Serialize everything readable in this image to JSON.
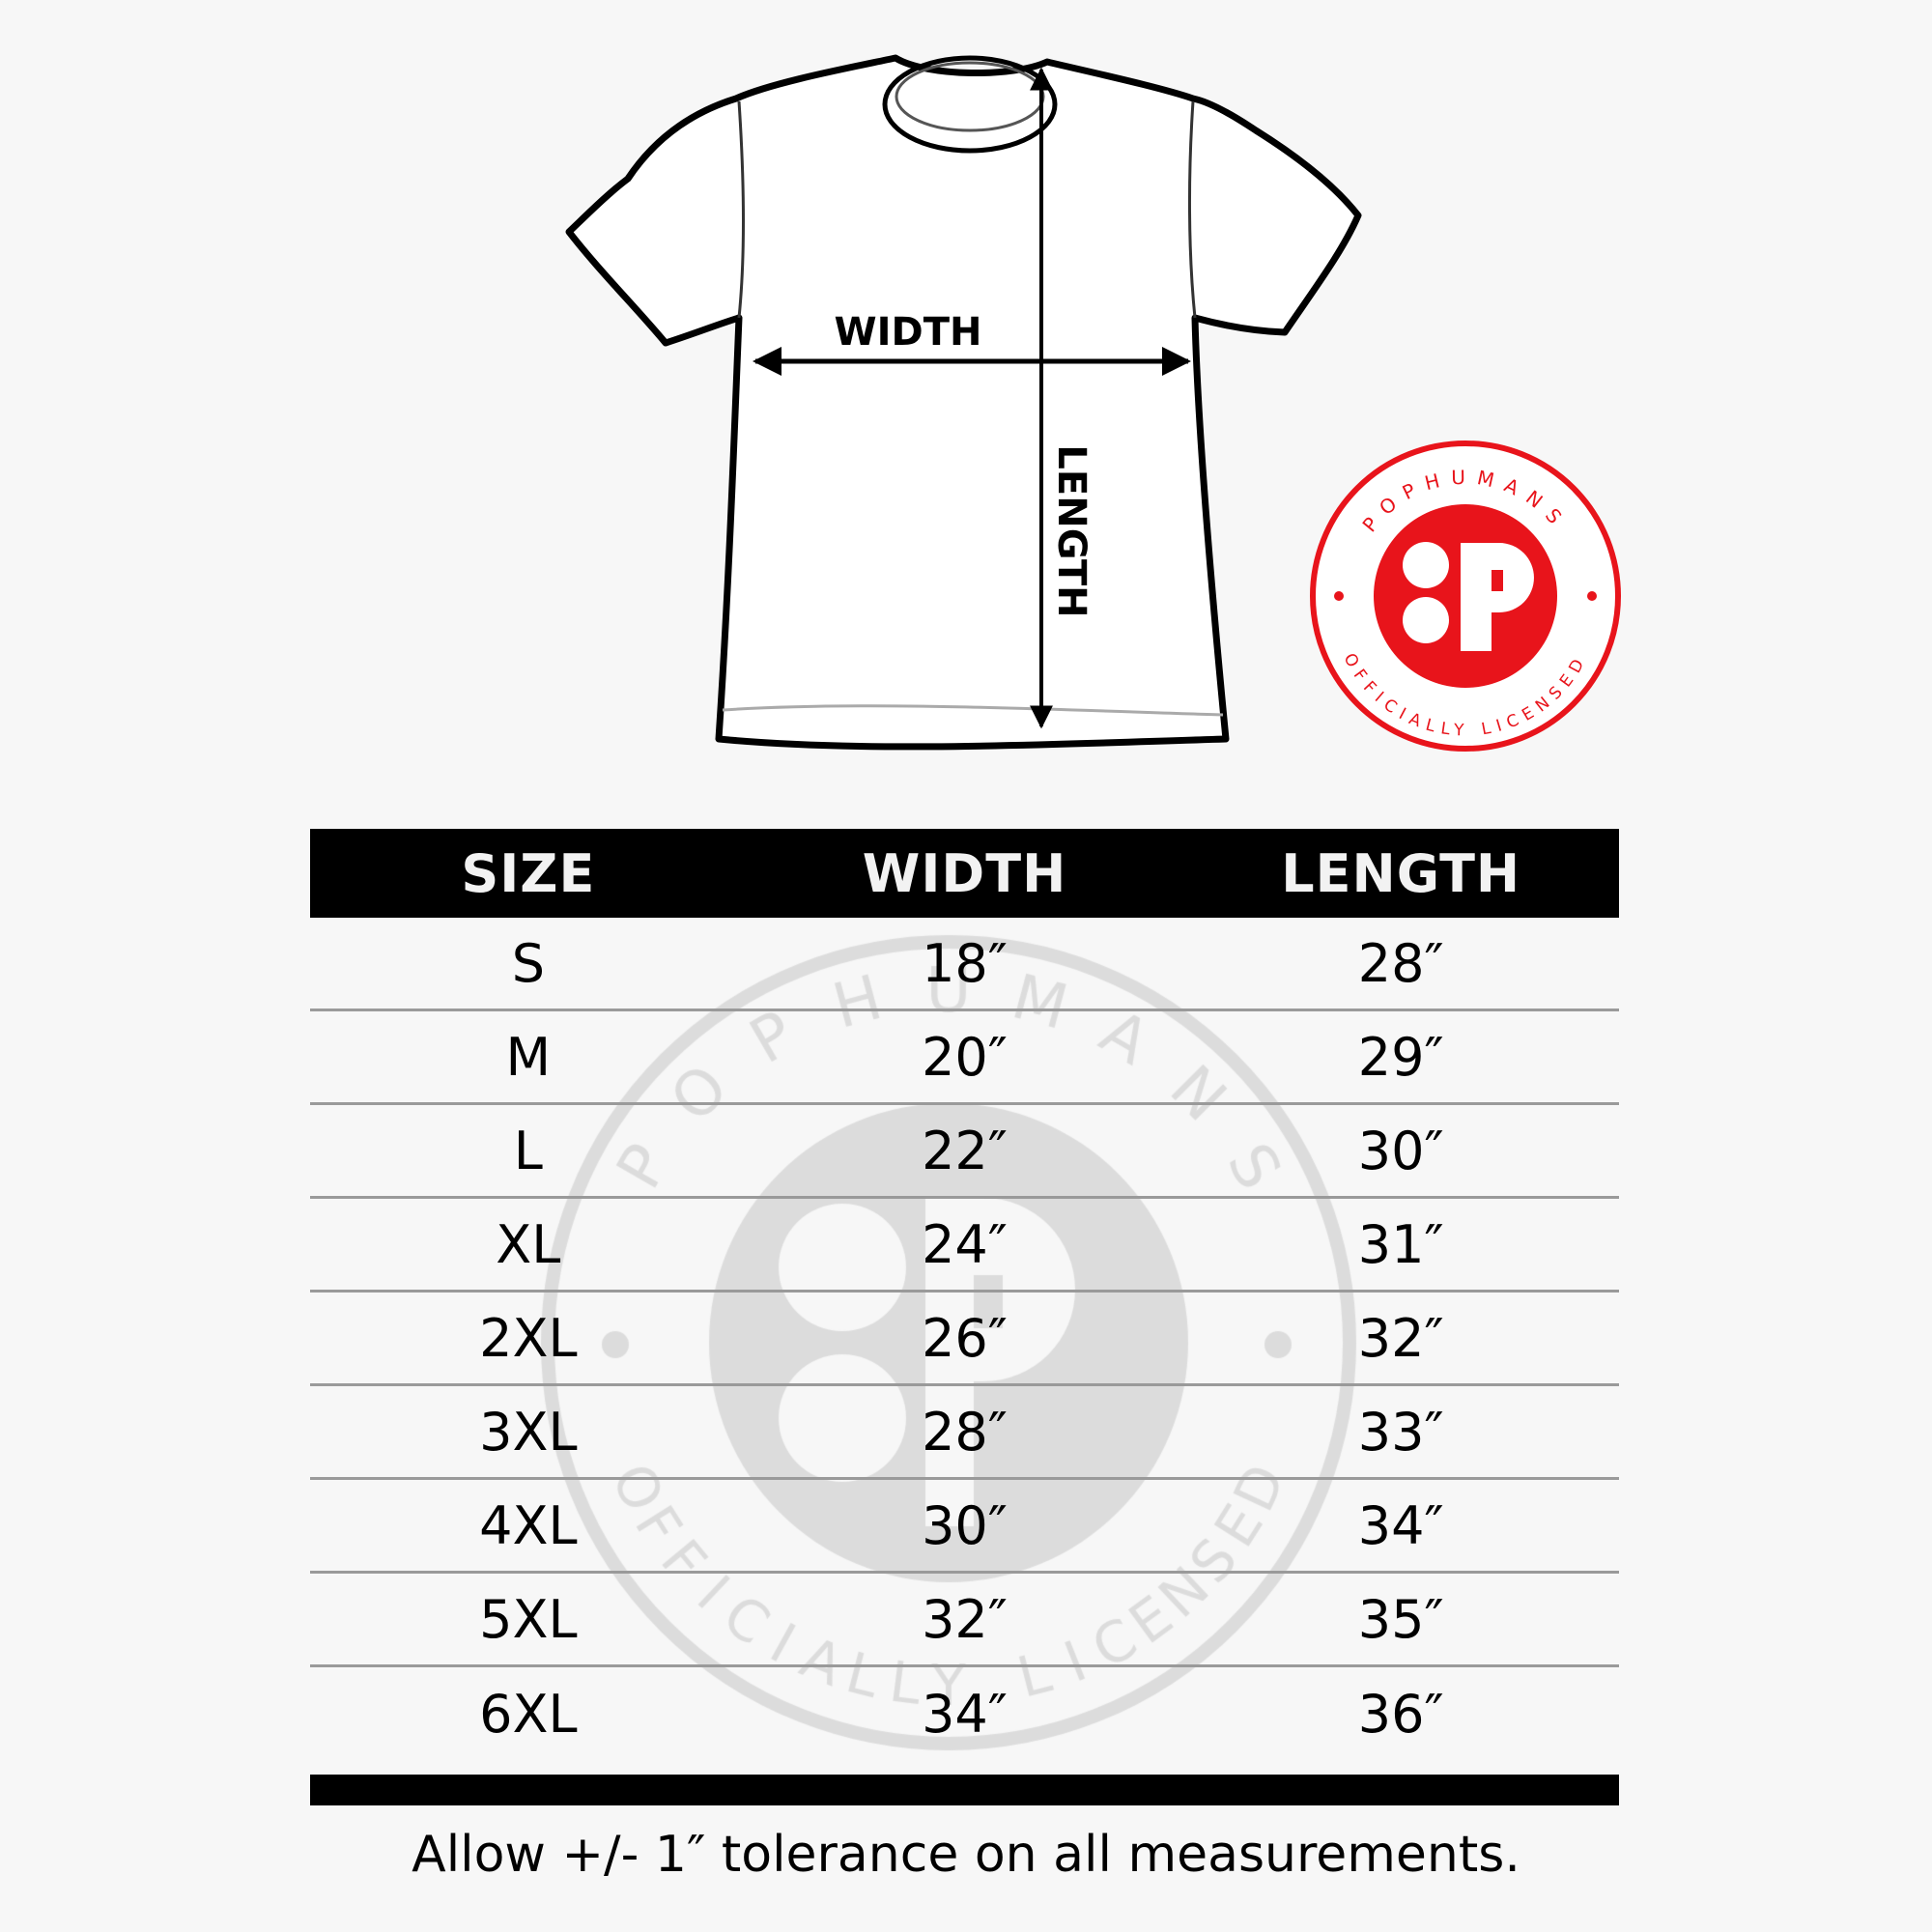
{
  "diagram": {
    "width_label": "WIDTH",
    "length_label": "LENGTH"
  },
  "badge": {
    "top_text": "POPHUMANS",
    "bottom_text": "OFFICIALLY LICENSED",
    "color": "#e8141b"
  },
  "watermark": {
    "top_text": "POPHUMANS",
    "bottom_text": "OFFICIALLY LICENSED",
    "color": "#d9d9d9"
  },
  "table": {
    "headers": [
      "SIZE",
      "WIDTH",
      "LENGTH"
    ],
    "rows": [
      [
        "S",
        "18″",
        "28″"
      ],
      [
        "M",
        "20″",
        "29″"
      ],
      [
        "L",
        "22″",
        "30″"
      ],
      [
        "XL",
        "24″",
        "31″"
      ],
      [
        "2XL",
        "26″",
        "32″"
      ],
      [
        "3XL",
        "28″",
        "33″"
      ],
      [
        "4XL",
        "30″",
        "34″"
      ],
      [
        "5XL",
        "32″",
        "35″"
      ],
      [
        "6XL",
        "34″",
        "36″"
      ]
    ]
  },
  "footer": "Allow +/- 1″ tolerance on all measurements."
}
